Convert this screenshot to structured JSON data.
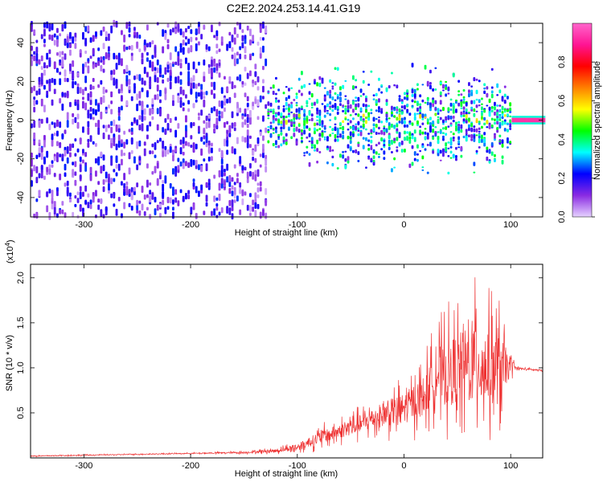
{
  "title": "C2E2.2024.253.14.41.G19",
  "chart_data": [
    {
      "type": "heatmap",
      "xlabel": "Height of straight line (km)",
      "ylabel": "Frequency (Hz)",
      "xlim": [
        -350,
        130
      ],
      "ylim": [
        -50,
        50
      ],
      "xticks": [
        -300,
        -200,
        -100,
        0,
        100
      ],
      "yticks": [
        -40,
        -20,
        0,
        20,
        40
      ],
      "colorbar": {
        "label": "Normalized spectral amplitude",
        "range": [
          0.0,
          1.0
        ],
        "ticks": [
          0.0,
          0.2,
          0.4,
          0.6,
          0.8
        ],
        "colormap": [
          "#e6d2ff",
          "#8a2be2",
          "#0000ff",
          "#00ffff",
          "#00ff00",
          "#ffff00",
          "#ff8000",
          "#ff0000",
          "#ff1493",
          "#ff66cc"
        ]
      },
      "regions": [
        {
          "x": [
            -350,
            -130
          ],
          "freq_spread": 50,
          "amplitude": [
            0.03,
            0.25
          ]
        },
        {
          "x": [
            -130,
            100
          ],
          "freq_spread": 10,
          "amplitude": [
            0.1,
            0.45
          ]
        },
        {
          "x": [
            100,
            130
          ],
          "freq_spread": 1,
          "amplitude": [
            0.85,
            1.0
          ]
        }
      ]
    },
    {
      "type": "line",
      "xlabel": "Height of straight line (km)",
      "ylabel": "SNR (10 * v/v)",
      "y_multiplier": "(x10",
      "y_multiplier_exp": "4",
      "y_multiplier_close": ")",
      "xlim": [
        -350,
        130
      ],
      "ylim": [
        0,
        2.15
      ],
      "xticks": [
        -300,
        -200,
        -100,
        0,
        100
      ],
      "yticks": [
        0.5,
        1.0,
        1.5,
        2.0
      ],
      "series": [
        {
          "color": "#ee3333",
          "x": [
            -350,
            -300,
            -250,
            -200,
            -150,
            -120,
            -100,
            -80,
            -60,
            -40,
            -20,
            0,
            20,
            30,
            40,
            50,
            60,
            70,
            80,
            90,
            100,
            105,
            110,
            120,
            130
          ],
          "y": [
            0.02,
            0.03,
            0.04,
            0.05,
            0.06,
            0.08,
            0.12,
            0.22,
            0.3,
            0.38,
            0.48,
            0.55,
            0.7,
            0.95,
            0.92,
            1.0,
            1.02,
            1.05,
            1.0,
            0.97,
            1.03,
            1.0,
            0.99,
            0.98,
            0.97
          ],
          "noise": [
            0.01,
            0.01,
            0.01,
            0.01,
            0.02,
            0.04,
            0.08,
            0.15,
            0.18,
            0.22,
            0.3,
            0.38,
            0.5,
            0.6,
            0.8,
            0.85,
            0.95,
            1.0,
            0.9,
            0.85,
            0.2,
            0.03,
            0.02,
            0.02,
            0.02
          ]
        }
      ]
    }
  ]
}
